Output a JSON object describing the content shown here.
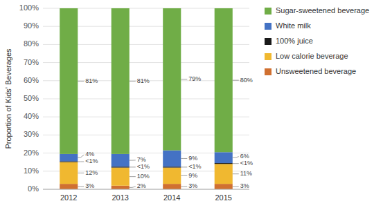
{
  "chart_data": {
    "type": "bar",
    "stacked": true,
    "categories": [
      "2012",
      "2013",
      "2014",
      "2015"
    ],
    "series": [
      {
        "name": "Unsweetened beverage",
        "color": "#d07030",
        "values": [
          3,
          2,
          3,
          3
        ],
        "value_labels": [
          "3%",
          "2%",
          "3%",
          "3%"
        ]
      },
      {
        "name": "Low calorie beverage",
        "color": "#f0b830",
        "values": [
          12,
          10,
          9,
          11
        ],
        "value_labels": [
          "12%",
          "10%",
          "9%",
          "11%"
        ]
      },
      {
        "name": "100% juice",
        "color": "#1a1a1a",
        "values": [
          0.5,
          0.5,
          0.5,
          0.5
        ],
        "value_labels": [
          "<1%",
          "<1%",
          "<1%",
          "<1%"
        ]
      },
      {
        "name": "White milk",
        "color": "#4472c4",
        "values": [
          4,
          7,
          9,
          6
        ],
        "value_labels": [
          "4%",
          "7%",
          "9%",
          "6%"
        ]
      },
      {
        "name": "Sugar-sweetened beverage",
        "color": "#70ad47",
        "values": [
          80.5,
          80.5,
          78.5,
          79.5
        ],
        "value_labels": [
          "81%",
          "81%",
          "79%",
          "80%"
        ]
      }
    ],
    "ylabel": "Proportion of Kids' Beverages",
    "ylim": [
      0,
      100
    ],
    "yticks": [
      {
        "value": 0,
        "label": "0%"
      },
      {
        "value": 10,
        "label": "10%"
      },
      {
        "value": 20,
        "label": "20%"
      },
      {
        "value": 30,
        "label": "30%"
      },
      {
        "value": 40,
        "label": "40%"
      },
      {
        "value": 50,
        "label": "50%"
      },
      {
        "value": 60,
        "label": "60%"
      },
      {
        "value": 70,
        "label": "70%"
      },
      {
        "value": 80,
        "label": "80%"
      },
      {
        "value": 90,
        "label": "90%"
      },
      {
        "value": 100,
        "label": "100%"
      }
    ],
    "grid": true,
    "data_labels": true,
    "legend": "right"
  }
}
